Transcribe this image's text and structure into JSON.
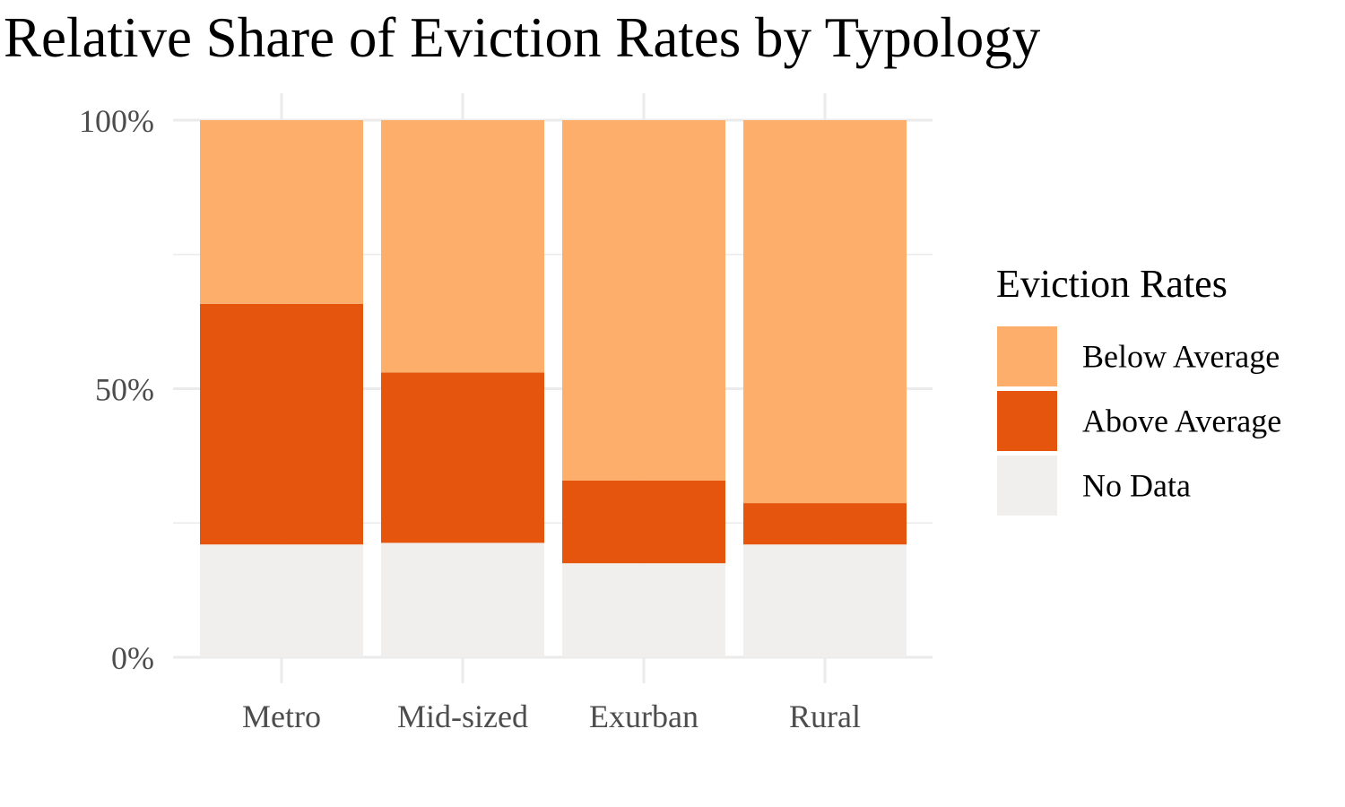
{
  "chart_data": {
    "type": "bar",
    "stacked": true,
    "title": "Relative Share of Eviction Rates by Typology",
    "xlabel": "",
    "ylabel": "",
    "categories": [
      "Metro",
      "Mid-sized",
      "Exurban",
      "Rural"
    ],
    "series": [
      {
        "name": "No Data",
        "color": "#F0EFED",
        "values": [
          21,
          21.3,
          17.5,
          21
        ]
      },
      {
        "name": "Above Average",
        "color": "#E6550D",
        "values": [
          44.8,
          31.7,
          15.4,
          7.7
        ]
      },
      {
        "name": "Below Average",
        "color": "#FDAE6B",
        "values": [
          34.2,
          47,
          67.1,
          71.3
        ]
      }
    ],
    "ylim": [
      0,
      100
    ],
    "yticks": [
      0,
      50,
      100
    ],
    "ytick_labels": [
      "0%",
      "50%",
      "100%"
    ],
    "grid": true,
    "legend": {
      "title": "Eviction Rates",
      "position": "right",
      "entries": [
        "Below Average",
        "Above Average",
        "No Data"
      ]
    }
  }
}
